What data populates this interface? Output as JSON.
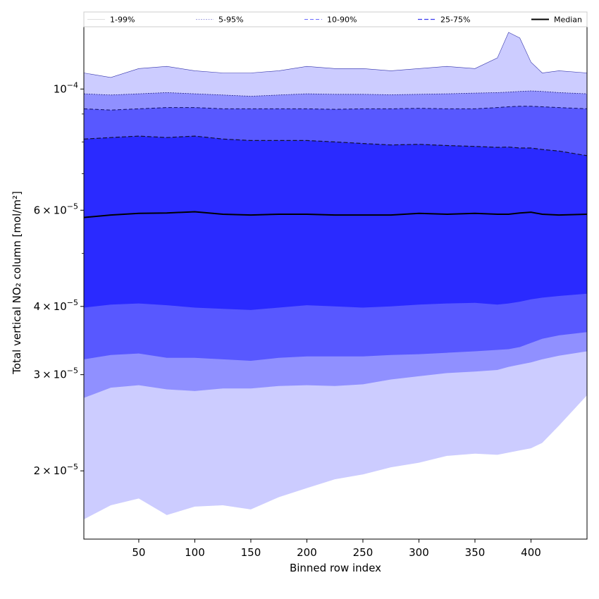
{
  "chart_data": {
    "type": "area",
    "title": "",
    "xlabel": "Binned row index",
    "ylabel": "Total vertical NO₂ column [mol/m²]",
    "xlim": [
      1,
      450
    ],
    "ylim": [
      1.5e-05,
      0.00013
    ],
    "yscale": "log",
    "x_ticks": [
      50,
      100,
      150,
      200,
      250,
      300,
      350,
      400
    ],
    "y_ticks": [
      {
        "value": 2e-05,
        "mant": "2",
        "exp": "−5"
      },
      {
        "value": 3e-05,
        "mant": "3",
        "exp": "−5"
      },
      {
        "value": 4e-05,
        "mant": "4",
        "exp": "−5"
      },
      {
        "value": 6e-05,
        "mant": "6",
        "exp": "−5"
      },
      {
        "value": 0.0001,
        "mant": "",
        "exp": "−4"
      }
    ],
    "legend_position": "top",
    "x": [
      1,
      25,
      50,
      75,
      100,
      125,
      150,
      175,
      200,
      225,
      250,
      275,
      300,
      325,
      350,
      370,
      380,
      390,
      400,
      410,
      425,
      450
    ],
    "bands": [
      {
        "name": "1-99%",
        "color": "#ccccff",
        "lower": [
          1.63e-05,
          1.73e-05,
          1.78e-05,
          1.66e-05,
          1.72e-05,
          1.73e-05,
          1.7e-05,
          1.79e-05,
          1.86e-05,
          1.93e-05,
          1.97e-05,
          2.03e-05,
          2.07e-05,
          2.13e-05,
          2.15e-05,
          2.14e-05,
          2.16e-05,
          2.18e-05,
          2.2e-05,
          2.25e-05,
          2.42e-05,
          2.75e-05
        ],
        "upper": [
          0.000107,
          0.000105,
          0.000109,
          0.00011,
          0.000108,
          0.000107,
          0.000107,
          0.000108,
          0.00011,
          0.000109,
          0.000109,
          0.000108,
          0.000109,
          0.00011,
          0.000109,
          0.000114,
          0.000127,
          0.000124,
          0.000112,
          0.000107,
          0.000108,
          0.000107
        ]
      },
      {
        "name": "5-95%",
        "color": "#9090ff",
        "lower": [
          2.72e-05,
          2.84e-05,
          2.87e-05,
          2.82e-05,
          2.8e-05,
          2.83e-05,
          2.83e-05,
          2.86e-05,
          2.87e-05,
          2.86e-05,
          2.88e-05,
          2.94e-05,
          2.98e-05,
          3.02e-05,
          3.04e-05,
          3.06e-05,
          3.1e-05,
          3.13e-05,
          3.16e-05,
          3.2e-05,
          3.25e-05,
          3.31e-05
        ],
        "upper": [
          9.8e-05,
          9.75e-05,
          9.8e-05,
          9.85e-05,
          9.8e-05,
          9.75e-05,
          9.7e-05,
          9.75e-05,
          9.8e-05,
          9.78e-05,
          9.78e-05,
          9.76e-05,
          9.78e-05,
          9.8e-05,
          9.83e-05,
          9.85e-05,
          9.87e-05,
          9.9e-05,
          9.92e-05,
          9.9e-05,
          9.85e-05,
          9.8e-05
        ]
      },
      {
        "name": "10-90%",
        "color": "#5858ff",
        "lower": [
          3.2e-05,
          3.26e-05,
          3.28e-05,
          3.22e-05,
          3.22e-05,
          3.2e-05,
          3.18e-05,
          3.22e-05,
          3.24e-05,
          3.24e-05,
          3.24e-05,
          3.26e-05,
          3.27e-05,
          3.29e-05,
          3.31e-05,
          3.33e-05,
          3.34e-05,
          3.37e-05,
          3.43e-05,
          3.49e-05,
          3.54e-05,
          3.59e-05
        ],
        "upper": [
          9.2e-05,
          9.15e-05,
          9.2e-05,
          9.25e-05,
          9.25e-05,
          9.2e-05,
          9.2e-05,
          9.2e-05,
          9.2e-05,
          9.18e-05,
          9.2e-05,
          9.2e-05,
          9.22e-05,
          9.2e-05,
          9.2e-05,
          9.25e-05,
          9.28e-05,
          9.3e-05,
          9.3e-05,
          9.28e-05,
          9.25e-05,
          9.2e-05
        ]
      },
      {
        "name": "25-75%",
        "color": "#2a2aff",
        "lower": [
          3.98e-05,
          4.03e-05,
          4.05e-05,
          4.02e-05,
          3.98e-05,
          3.96e-05,
          3.94e-05,
          3.98e-05,
          4.02e-05,
          4e-05,
          3.98e-05,
          4e-05,
          4.03e-05,
          4.05e-05,
          4.06e-05,
          4.03e-05,
          4.05e-05,
          4.08e-05,
          4.12e-05,
          4.15e-05,
          4.18e-05,
          4.22e-05
        ],
        "upper": [
          8.1e-05,
          8.15e-05,
          8.2e-05,
          8.15e-05,
          8.2e-05,
          8.1e-05,
          8.05e-05,
          8.05e-05,
          8.05e-05,
          8e-05,
          7.95e-05,
          7.9e-05,
          7.92e-05,
          7.88e-05,
          7.85e-05,
          7.82e-05,
          7.83e-05,
          7.8e-05,
          7.8e-05,
          7.75e-05,
          7.7e-05,
          7.55e-05
        ]
      }
    ],
    "median": [
      5.82e-05,
      5.88e-05,
      5.92e-05,
      5.93e-05,
      5.96e-05,
      5.9e-05,
      5.88e-05,
      5.9e-05,
      5.9e-05,
      5.88e-05,
      5.88e-05,
      5.88e-05,
      5.92e-05,
      5.9e-05,
      5.92e-05,
      5.9e-05,
      5.9e-05,
      5.93e-05,
      5.95e-05,
      5.9e-05,
      5.88e-05,
      5.9e-05
    ],
    "legend": [
      {
        "label": "1-99%",
        "color": "#bfbfbf",
        "dash": "",
        "width": 0.6
      },
      {
        "label": "5-95%",
        "color": "#8a8ad8",
        "dash": "2,1.5",
        "width": 0.7
      },
      {
        "label": "10-90%",
        "color": "#6a6aff",
        "dash": "5,3",
        "width": 1
      },
      {
        "label": "25-75%",
        "color": "#3a3aee",
        "dash": "6,3",
        "width": 1.2
      },
      {
        "label": "Median",
        "color": "#000000",
        "dash": "",
        "width": 2
      }
    ]
  }
}
